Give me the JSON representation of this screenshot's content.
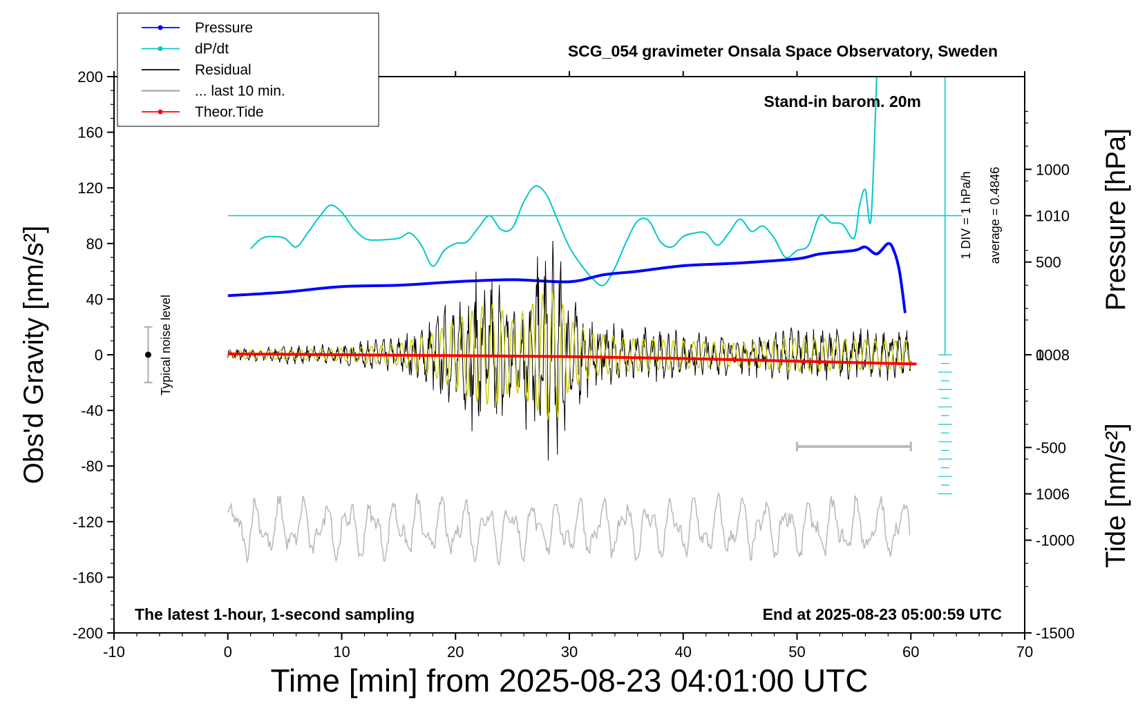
{
  "chart_data": {
    "type": "line",
    "title": "SCG_054 gravimeter Onsala Space Observatory, Sweden",
    "xlabel": "Time [min] from 2025-08-23 04:01:00 UTC",
    "ylabel_left": "Obs'd Gravity [nm/s²]",
    "ylabel_right_top": "Pressure [hPa]",
    "ylabel_right_bottom": "Tide [nm/s²]",
    "xlim": [
      -10,
      70
    ],
    "ylim": [
      -200,
      200
    ],
    "pressure_ylim": [
      1004,
      1012
    ],
    "tide_ylim": [
      -1500,
      1500
    ],
    "x_ticks": [
      "-10",
      "0",
      "10",
      "20",
      "30",
      "40",
      "50",
      "60",
      "70"
    ],
    "y_ticks": [
      "200",
      "160",
      "120",
      "80",
      "40",
      "0",
      "-40",
      "-80",
      "-120",
      "-160",
      "-200"
    ],
    "pressure_ticks": [
      "1010",
      "1008",
      "1006"
    ],
    "tide_ticks": [
      "1000",
      "500",
      "0",
      "-500",
      "-1000",
      "-1500"
    ],
    "legend": {
      "position": "top-left",
      "entries": [
        {
          "label": "Pressure",
          "color": "#0000ff"
        },
        {
          "label": "dP/dt",
          "color": "#00c8c8"
        },
        {
          "label": "Residual",
          "color": "#000000"
        },
        {
          "label": "... last 10 min.",
          "color": "#bbbbbb"
        },
        {
          "label": "Theor.Tide",
          "color": "#ff0000"
        }
      ]
    },
    "annotations": {
      "stand_in": "Stand-in barom. 20m",
      "latest": "The latest 1-hour, 1-second sampling",
      "end": "End at 2025-08-23 05:00:59 UTC",
      "noise": "Typical noise level",
      "div": "1 DIV = 1 hPa/h",
      "average": "average = 0.4846"
    },
    "colors": {
      "pressure": "#0000ff",
      "dpdt": "#00c8c8",
      "residual": "#000000",
      "filtered": "#cccc00",
      "last10": "#bbbbbb",
      "tide": "#ff0000"
    },
    "series": [
      {
        "name": "Pressure",
        "unit": "hPa",
        "x": [
          0,
          5,
          10,
          15,
          20,
          25,
          30,
          33,
          36,
          40,
          45,
          50,
          52,
          55,
          56,
          57,
          58,
          58.5,
          59,
          59.5
        ],
        "values": [
          1008.85,
          1008.9,
          1008.98,
          1009.0,
          1009.05,
          1009.08,
          1009.05,
          1009.15,
          1009.2,
          1009.28,
          1009.32,
          1009.38,
          1009.45,
          1009.5,
          1009.55,
          1009.45,
          1009.6,
          1009.5,
          1009.2,
          1008.6
        ]
      },
      {
        "name": "dP/dt",
        "unit": "hPa/h",
        "x": [
          2,
          3,
          4,
          5,
          6,
          7,
          8,
          9,
          10,
          11,
          12,
          13,
          15,
          16,
          17,
          18,
          19,
          20,
          21,
          22,
          23,
          24,
          25,
          26,
          27,
          28,
          29,
          30,
          31,
          32,
          33,
          34,
          35,
          36,
          37,
          38,
          39,
          40,
          41,
          42,
          43,
          44,
          45,
          46,
          47,
          48,
          49,
          50,
          51,
          52,
          53,
          54,
          55,
          55.5,
          56,
          56.5,
          57
        ],
        "values": [
          1.9,
          1.3,
          1.2,
          1.3,
          1.8,
          1.0,
          0.1,
          -0.6,
          -0.2,
          0.7,
          1.3,
          1.4,
          1.3,
          1.0,
          1.7,
          2.9,
          2.0,
          1.6,
          1.5,
          0.7,
          0.0,
          0.8,
          0.7,
          -0.8,
          -1.7,
          -1.2,
          0.3,
          1.8,
          2.8,
          3.6,
          4.0,
          3.0,
          1.5,
          0.3,
          0.3,
          1.5,
          1.8,
          1.2,
          1.0,
          1.0,
          1.7,
          1.0,
          0.2,
          0.9,
          0.6,
          1.3,
          2.4,
          2.0,
          1.7,
          0.0,
          0.4,
          0.5,
          1.3,
          -0.6,
          -1.5,
          0.2,
          -8.0
        ]
      },
      {
        "name": "Residual",
        "unit": "nm/s²",
        "envelope_x": [
          0,
          10,
          15,
          18,
          20,
          22,
          23.5,
          25,
          27,
          28,
          29,
          30,
          32,
          35,
          40,
          45,
          50,
          55,
          60
        ],
        "envelope_amplitude": [
          5,
          8,
          14,
          28,
          45,
          62,
          68,
          45,
          70,
          85,
          82,
          45,
          28,
          22,
          18,
          15,
          22,
          20,
          18
        ]
      },
      {
        "name": "... last 10 min.",
        "unit": "nm/s²",
        "x": [
          0,
          60
        ],
        "values": [
          -125,
          -125
        ]
      },
      {
        "name": "Theor.Tide",
        "unit": "nm/s²",
        "x": [
          0,
          10,
          20,
          30,
          40,
          50,
          60.5
        ],
        "values": [
          5,
          0,
          -5,
          -10,
          -20,
          -35,
          -50
        ]
      }
    ],
    "noise_bar": {
      "x": -7,
      "center": 0,
      "half_range": 20
    },
    "last10_marker": {
      "x_range": [
        50,
        60
      ],
      "y": -66
    }
  }
}
